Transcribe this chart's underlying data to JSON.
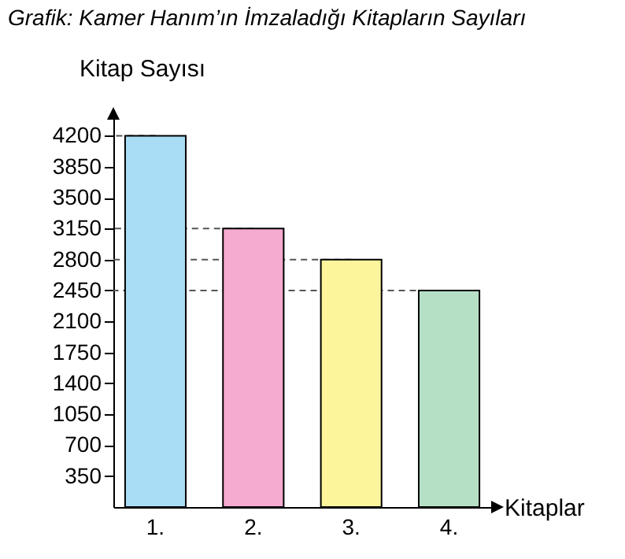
{
  "chart_data": {
    "type": "bar",
    "title": "Grafik: Kamer Hanım’ın İmzaladığı Kitapların Sayıları",
    "xlabel": "Kitaplar",
    "ylabel": "Kitap Sayısı",
    "categories": [
      "1.",
      "2.",
      "3.",
      "4."
    ],
    "values": [
      4200,
      3150,
      2800,
      2450
    ],
    "colors": [
      "#a9ddf5",
      "#f5aad0",
      "#fdf59c",
      "#b6e0c6"
    ],
    "ylim": [
      0,
      4400
    ],
    "yticks": [
      350,
      700,
      1050,
      1400,
      1750,
      2100,
      2450,
      2800,
      3150,
      3500,
      3850,
      4200
    ],
    "ref_lines": [
      {
        "axis": "y",
        "value": 4200,
        "line_style": "dashed"
      },
      {
        "axis": "y",
        "value": 3150,
        "line_style": "dashed"
      },
      {
        "axis": "y",
        "value": 2800,
        "line_style": "dashed"
      },
      {
        "axis": "y",
        "value": 2450,
        "line_style": "dashed"
      }
    ],
    "grid": false
  }
}
